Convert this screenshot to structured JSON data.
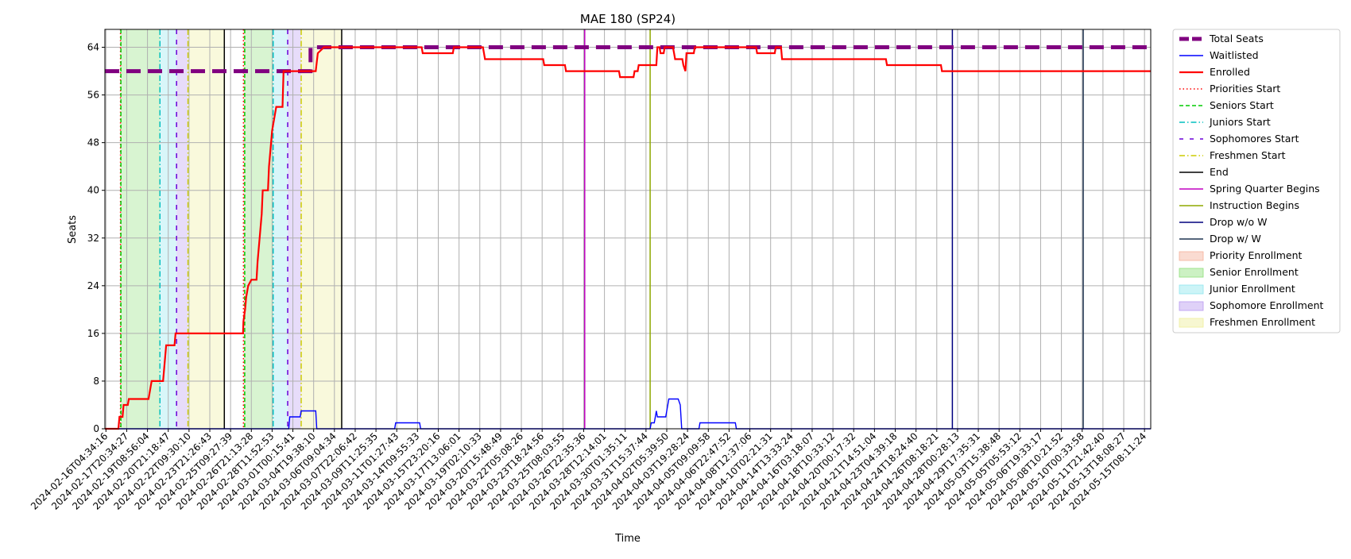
{
  "chart_data": {
    "type": "line",
    "title": "MAE 180 (SP24)",
    "xlabel": "Time",
    "ylabel": "Seats",
    "ylim": [
      0,
      67
    ],
    "yticks": [
      0,
      8,
      16,
      24,
      32,
      40,
      48,
      56,
      64
    ],
    "grid": true,
    "legend_position": "outside-right",
    "x_tick_labels": [
      "2024-02-16T04:34:16",
      "2024-02-17T20:34:27",
      "2024-02-19T08:56:04",
      "2024-02-20T21:18:47",
      "2024-02-22T09:30:10",
      "2024-02-23T21:26:43",
      "2024-02-25T09:27:39",
      "2024-02-26T21:13:28",
      "2024-02-28T11:52:53",
      "2024-03-01T00:15:41",
      "2024-03-04T19:38:10",
      "2024-03-06T09:04:34",
      "2024-03-07T22:06:42",
      "2024-03-09T11:25:35",
      "2024-03-11T01:27:43",
      "2024-03-14T09:55:33",
      "2024-03-15T23:20:16",
      "2024-03-17T13:06:01",
      "2024-03-19T02:10:33",
      "2024-03-20T15:48:49",
      "2024-03-22T05:08:26",
      "2024-03-23T18:24:56",
      "2024-03-25T08:03:55",
      "2024-03-26T22:35:36",
      "2024-03-28T12:14:01",
      "2024-03-30T01:35:11",
      "2024-03-31T15:37:44",
      "2024-04-02T05:39:50",
      "2024-04-03T19:28:24",
      "2024-04-05T09:09:58",
      "2024-04-06T22:47:52",
      "2024-04-08T12:37:06",
      "2024-04-10T02:21:31",
      "2024-04-14T13:33:24",
      "2024-04-16T03:18:07",
      "2024-04-18T10:33:12",
      "2024-04-20T00:17:32",
      "2024-04-21T14:51:04",
      "2024-04-23T04:39:18",
      "2024-04-24T18:24:40",
      "2024-04-26T08:18:21",
      "2024-04-28T00:28:13",
      "2024-04-29T17:35:31",
      "2024-05-03T15:38:48",
      "2024-05-05T05:53:12",
      "2024-05-06T19:33:17",
      "2024-05-08T10:21:52",
      "2024-05-10T00:33:58",
      "2024-05-11T21:42:40",
      "2024-05-13T18:08:27",
      "2024-05-15T08:11:24"
    ],
    "x_range": [
      -0.05,
      50.3
    ],
    "series": [
      {
        "name": "Total Seats",
        "color": "#800080",
        "style": "dashed-thick",
        "points": [
          [
            -0.05,
            60
          ],
          [
            9.85,
            60
          ],
          [
            9.85,
            61
          ],
          [
            9.85,
            64
          ],
          [
            50.3,
            64
          ]
        ]
      },
      {
        "name": "Waitlisted",
        "color": "#0000ff",
        "style": "solid",
        "points": [
          [
            -0.05,
            0
          ],
          [
            8.8,
            0
          ],
          [
            8.85,
            2
          ],
          [
            9.35,
            2
          ],
          [
            9.4,
            3
          ],
          [
            10.1,
            3
          ],
          [
            10.15,
            0
          ],
          [
            13.9,
            0
          ],
          [
            13.95,
            1
          ],
          [
            15.1,
            1
          ],
          [
            15.15,
            0
          ],
          [
            26.2,
            0
          ],
          [
            26.25,
            1
          ],
          [
            26.4,
            1
          ],
          [
            26.45,
            2
          ],
          [
            26.5,
            3
          ],
          [
            26.55,
            2
          ],
          [
            26.95,
            2
          ],
          [
            27.0,
            3
          ],
          [
            27.1,
            5
          ],
          [
            27.55,
            5
          ],
          [
            27.65,
            4
          ],
          [
            27.72,
            0
          ],
          [
            28.55,
            0
          ],
          [
            28.6,
            1
          ],
          [
            30.3,
            1
          ],
          [
            30.35,
            0
          ],
          [
            50.3,
            0
          ]
        ]
      },
      {
        "name": "Enrolled",
        "color": "#ff0000",
        "style": "solid-thick",
        "points": [
          [
            -0.05,
            0
          ],
          [
            0.6,
            0
          ],
          [
            0.65,
            2
          ],
          [
            0.8,
            2
          ],
          [
            0.85,
            4
          ],
          [
            1.05,
            4
          ],
          [
            1.1,
            5
          ],
          [
            2.05,
            5
          ],
          [
            2.1,
            6
          ],
          [
            2.15,
            7
          ],
          [
            2.2,
            8
          ],
          [
            2.75,
            8
          ],
          [
            2.8,
            10
          ],
          [
            2.9,
            14
          ],
          [
            3.3,
            14
          ],
          [
            3.35,
            16
          ],
          [
            6.6,
            16
          ],
          [
            6.62,
            18
          ],
          [
            6.7,
            20
          ],
          [
            6.75,
            22
          ],
          [
            6.85,
            24
          ],
          [
            7.0,
            25
          ],
          [
            7.25,
            25
          ],
          [
            7.3,
            28
          ],
          [
            7.4,
            32
          ],
          [
            7.5,
            36
          ],
          [
            7.55,
            40
          ],
          [
            7.8,
            40
          ],
          [
            7.85,
            44
          ],
          [
            8.0,
            50
          ],
          [
            8.1,
            52
          ],
          [
            8.2,
            54
          ],
          [
            8.5,
            54
          ],
          [
            8.55,
            60
          ],
          [
            10.1,
            60
          ],
          [
            10.2,
            63
          ],
          [
            10.5,
            64
          ],
          [
            15.2,
            64
          ],
          [
            15.25,
            63
          ],
          [
            16.7,
            63
          ],
          [
            16.75,
            64
          ],
          [
            18.15,
            64
          ],
          [
            18.2,
            63
          ],
          [
            18.25,
            62
          ],
          [
            21.05,
            62
          ],
          [
            21.1,
            61
          ],
          [
            22.1,
            61
          ],
          [
            22.15,
            60
          ],
          [
            24.7,
            60
          ],
          [
            24.75,
            59
          ],
          [
            25.4,
            59
          ],
          [
            25.45,
            60
          ],
          [
            25.6,
            60
          ],
          [
            25.65,
            61
          ],
          [
            26.5,
            61
          ],
          [
            26.55,
            64
          ],
          [
            26.65,
            64
          ],
          [
            26.7,
            63
          ],
          [
            26.85,
            63
          ],
          [
            26.9,
            64
          ],
          [
            27.3,
            64
          ],
          [
            27.35,
            63
          ],
          [
            27.4,
            62
          ],
          [
            27.75,
            62
          ],
          [
            27.8,
            61
          ],
          [
            27.9,
            60
          ],
          [
            27.95,
            63
          ],
          [
            28.3,
            63
          ],
          [
            28.35,
            64
          ],
          [
            31.3,
            64
          ],
          [
            31.35,
            63
          ],
          [
            32.2,
            63
          ],
          [
            32.25,
            64
          ],
          [
            32.5,
            64
          ],
          [
            32.55,
            62
          ],
          [
            37.55,
            62
          ],
          [
            37.6,
            61
          ],
          [
            40.2,
            61
          ],
          [
            40.25,
            60
          ],
          [
            50.3,
            60
          ]
        ]
      }
    ],
    "vertical_lines": [
      {
        "name": "Priorities Start",
        "color": "#ff0000",
        "style": "dotted",
        "x": [
          0.7,
          6.62
        ]
      },
      {
        "name": "Seniors Start",
        "color": "#00cc00",
        "style": "dashed",
        "x": [
          0.72,
          6.68
        ]
      },
      {
        "name": "Juniors Start",
        "color": "#00bfbf",
        "style": "dashdot",
        "x": [
          2.6,
          8.05
        ]
      },
      {
        "name": "Sophomores Start",
        "color": "#6a00d9",
        "style": "loosedash",
        "x": [
          3.4,
          8.75
        ]
      },
      {
        "name": "Freshmen Start",
        "color": "#cccc00",
        "style": "dashdot",
        "x": [
          3.95,
          9.4
        ]
      },
      {
        "name": "End",
        "color": "#000000",
        "style": "solid",
        "x": [
          5.7,
          11.35
        ]
      },
      {
        "name": "Spring Quarter Begins",
        "color": "#c000c0",
        "style": "solid",
        "x": [
          23.05
        ]
      },
      {
        "name": "Instruction Begins",
        "color": "#8fa800",
        "style": "solid",
        "x": [
          26.2
        ]
      },
      {
        "name": "Drop w/o W",
        "color": "#00007f",
        "style": "solid",
        "x": [
          40.75
        ]
      },
      {
        "name": "Drop w/ W",
        "color": "#1f3350",
        "style": "solid",
        "x": [
          47.05
        ]
      }
    ],
    "shaded_regions": [
      {
        "name": "Priority Enrollment",
        "color": "#f5b09a",
        "ranges": [
          [
            0.7,
            0.72
          ],
          [
            6.62,
            6.68
          ]
        ]
      },
      {
        "name": "Senior Enrollment",
        "color": "#8fe07a",
        "ranges": [
          [
            0.72,
            2.6
          ],
          [
            6.68,
            8.05
          ]
        ]
      },
      {
        "name": "Junior Enrollment",
        "color": "#8fe6ee",
        "ranges": [
          [
            2.6,
            3.4
          ],
          [
            8.05,
            8.75
          ]
        ]
      },
      {
        "name": "Sophomore Enrollment",
        "color": "#b99af0",
        "ranges": [
          [
            3.4,
            3.95
          ],
          [
            8.75,
            9.4
          ]
        ]
      },
      {
        "name": "Freshmen Enrollment",
        "color": "#eeee9a",
        "ranges": [
          [
            3.95,
            5.7
          ],
          [
            9.4,
            11.35
          ]
        ]
      }
    ],
    "legend": [
      {
        "label": "Total Seats",
        "kind": "line",
        "color": "#800080",
        "style": "dashed-thick"
      },
      {
        "label": "Waitlisted",
        "kind": "line",
        "color": "#0000ff",
        "style": "solid"
      },
      {
        "label": "Enrolled",
        "kind": "line",
        "color": "#ff0000",
        "style": "solid-thick"
      },
      {
        "label": "Priorities Start",
        "kind": "line",
        "color": "#ff0000",
        "style": "dotted"
      },
      {
        "label": "Seniors Start",
        "kind": "line",
        "color": "#00cc00",
        "style": "dashed"
      },
      {
        "label": "Juniors Start",
        "kind": "line",
        "color": "#00bfbf",
        "style": "dashdot"
      },
      {
        "label": "Sophomores Start",
        "kind": "line",
        "color": "#6a00d9",
        "style": "loosedash"
      },
      {
        "label": "Freshmen Start",
        "kind": "line",
        "color": "#cccc00",
        "style": "dashdot"
      },
      {
        "label": "End",
        "kind": "line",
        "color": "#000000",
        "style": "solid"
      },
      {
        "label": "Spring Quarter Begins",
        "kind": "line",
        "color": "#c000c0",
        "style": "solid"
      },
      {
        "label": "Instruction Begins",
        "kind": "line",
        "color": "#8fa800",
        "style": "solid"
      },
      {
        "label": "Drop w/o W",
        "kind": "line",
        "color": "#00007f",
        "style": "solid"
      },
      {
        "label": "Drop w/ W",
        "kind": "line",
        "color": "#1f3350",
        "style": "solid"
      },
      {
        "label": "Priority Enrollment",
        "kind": "patch",
        "color": "#f5b09a"
      },
      {
        "label": "Senior Enrollment",
        "kind": "patch",
        "color": "#8fe07a"
      },
      {
        "label": "Junior Enrollment",
        "kind": "patch",
        "color": "#8fe6ee"
      },
      {
        "label": "Sophomore Enrollment",
        "kind": "patch",
        "color": "#b99af0"
      },
      {
        "label": "Freshmen Enrollment",
        "kind": "patch",
        "color": "#eeee9a"
      }
    ]
  }
}
